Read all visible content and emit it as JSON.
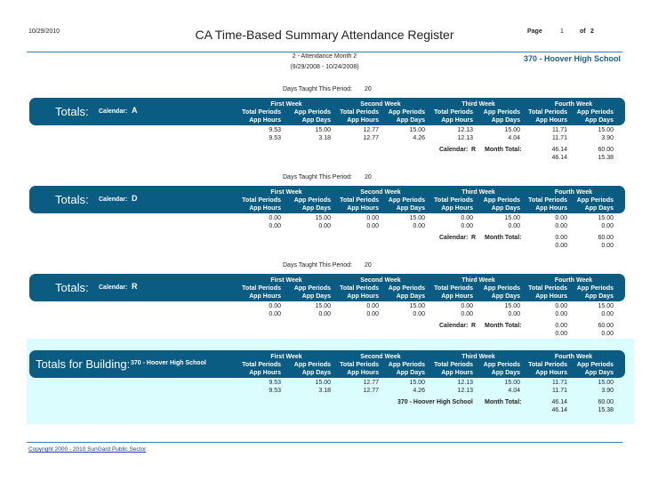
{
  "header": {
    "date": "10/29/2010",
    "title": "CA Time-Based Summary Attendance Register",
    "page_label": "Page",
    "page": "1",
    "of_label": "of",
    "page_count": "2",
    "period": "2 - Attendance Month 2",
    "date_range": "(9/29/2008 - 10/24/2008)",
    "school": "370 - Hoover High School"
  },
  "sections": [
    {
      "days_label": "Days Taught This Period:",
      "days": "20",
      "title": "Totals:",
      "calendar_label": "Calendar:",
      "calendar": "A",
      "weeks": [
        {
          "name": "First Week",
          "headers": [
            "Total Periods",
            "App Periods",
            "App Hours",
            "App Days"
          ]
        },
        {
          "name": "Second Week",
          "headers": [
            "Total Periods",
            "App Periods",
            "App Hours",
            "App Days"
          ]
        },
        {
          "name": "Third Week",
          "headers": [
            "Total Periods",
            "App Periods",
            "App Hours",
            "App Days"
          ]
        },
        {
          "name": "Fourth Week",
          "headers": [
            "Total Periods",
            "App Periods",
            "App Hours",
            "App Days"
          ]
        }
      ],
      "rows": [
        [
          "9.53",
          "15.00",
          "12.77",
          "15.00",
          "12.13",
          "15.00",
          "11.71",
          "15.00"
        ],
        [
          "9.53",
          "3.18",
          "12.77",
          "4.26",
          "12.13",
          "4.04",
          "11.71",
          "3.90"
        ]
      ],
      "total_calendar_label": "Calendar:",
      "total_calendar": "R",
      "month_total_label": "Month Total:",
      "month_totals": [
        [
          "46.14",
          "60.00"
        ],
        [
          "46.14",
          "15.38"
        ]
      ]
    },
    {
      "days_label": "Days Taught This Period:",
      "days": "20",
      "title": "Totals:",
      "calendar_label": "Calendar:",
      "calendar": "D",
      "weeks": [
        {
          "name": "First Week",
          "headers": [
            "Total Periods",
            "App Periods",
            "App Hours",
            "App Days"
          ]
        },
        {
          "name": "Second Week",
          "headers": [
            "Total Periods",
            "App Periods",
            "App Hours",
            "App Days"
          ]
        },
        {
          "name": "Third Week",
          "headers": [
            "Total Periods",
            "App Periods",
            "App Hours",
            "App Days"
          ]
        },
        {
          "name": "Fourth Week",
          "headers": [
            "Total Periods",
            "App Periods",
            "App Hours",
            "App Days"
          ]
        }
      ],
      "rows": [
        [
          "0.00",
          "15.00",
          "0.00",
          "15.00",
          "0.00",
          "15.00",
          "0.00",
          "15.00"
        ],
        [
          "0.00",
          "0.00",
          "0.00",
          "0.00",
          "0.00",
          "0.00",
          "0.00",
          "0.00"
        ]
      ],
      "total_calendar_label": "Calendar:",
      "total_calendar": "R",
      "month_total_label": "Month Total:",
      "month_totals": [
        [
          "0.00",
          "60.00"
        ],
        [
          "0.00",
          "0.00"
        ]
      ]
    },
    {
      "days_label": "Days Taught This Period:",
      "days": "20",
      "title": "Totals:",
      "calendar_label": "Calendar:",
      "calendar": "R",
      "weeks": [
        {
          "name": "First Week",
          "headers": [
            "Total Periods",
            "App Periods",
            "App Hours",
            "App Days"
          ]
        },
        {
          "name": "Second Week",
          "headers": [
            "Total Periods",
            "App Periods",
            "App Hours",
            "App Days"
          ]
        },
        {
          "name": "Third Week",
          "headers": [
            "Total Periods",
            "App Periods",
            "App Hours",
            "App Days"
          ]
        },
        {
          "name": "Fourth Week",
          "headers": [
            "Total Periods",
            "App Periods",
            "App Hours",
            "App Days"
          ]
        }
      ],
      "rows": [
        [
          "0.00",
          "15.00",
          "0.00",
          "15.00",
          "0.00",
          "15.00",
          "0.00",
          "15.00"
        ],
        [
          "0.00",
          "0.00",
          "0.00",
          "0.00",
          "0.00",
          "0.00",
          "0.00",
          "0.00"
        ]
      ],
      "total_calendar_label": "Calendar:",
      "total_calendar": "R",
      "month_total_label": "Month Total:",
      "month_totals": [
        [
          "0.00",
          "60.00"
        ],
        [
          "0.00",
          "0.00"
        ]
      ]
    },
    {
      "title": "Totals for Building:",
      "subtitle": "370 - Hoover High School",
      "weeks": [
        {
          "name": "First Week",
          "headers": [
            "Total Periods",
            "App Periods",
            "App Hours",
            "App Days"
          ]
        },
        {
          "name": "Second Week",
          "headers": [
            "Total Periods",
            "App Periods",
            "App Hours",
            "App Days"
          ]
        },
        {
          "name": "Third Week",
          "headers": [
            "Total Periods",
            "App Periods",
            "App Hours",
            "App Days"
          ]
        },
        {
          "name": "Fourth Week",
          "headers": [
            "Total Periods",
            "App Periods",
            "App Hours",
            "App Days"
          ]
        }
      ],
      "rows": [
        [
          "9.53",
          "15.00",
          "12.77",
          "15.00",
          "12.13",
          "15.00",
          "11.71",
          "15.00"
        ],
        [
          "9.53",
          "3.18",
          "12.77",
          "4.26",
          "12.13",
          "4.04",
          "11.71",
          "3.90"
        ]
      ],
      "total_for": "370 - Hoover High School",
      "month_total_label": "Month Total:",
      "month_totals": [
        [
          "46.14",
          "60.00"
        ],
        [
          "46.14",
          "15.38"
        ]
      ]
    }
  ],
  "footer": {
    "copyright": "Copyright 2000 - 2010 SunGard Public Sector"
  }
}
